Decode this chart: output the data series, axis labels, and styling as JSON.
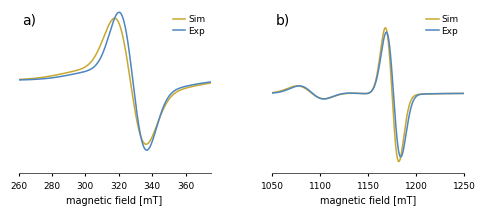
{
  "panel_a": {
    "xlim": [
      260,
      375
    ],
    "xticks": [
      260,
      280,
      300,
      320,
      340,
      360
    ],
    "xlabel": "magnetic field [mT]",
    "label": "a)",
    "exp_color": "#4e86c0",
    "sim_color": "#c8a830",
    "legend_labels": [
      "Exp",
      "Sim"
    ]
  },
  "panel_b": {
    "xlim": [
      1050,
      1250
    ],
    "xticks": [
      1050,
      1100,
      1150,
      1200,
      1250
    ],
    "xlabel": "magnetic field [mT]",
    "label": "b)",
    "exp_color": "#4e86c0",
    "sim_color": "#c8a830",
    "legend_labels": [
      "Exp",
      "Sim"
    ]
  },
  "background_color": "#ffffff",
  "line_width": 1.1
}
